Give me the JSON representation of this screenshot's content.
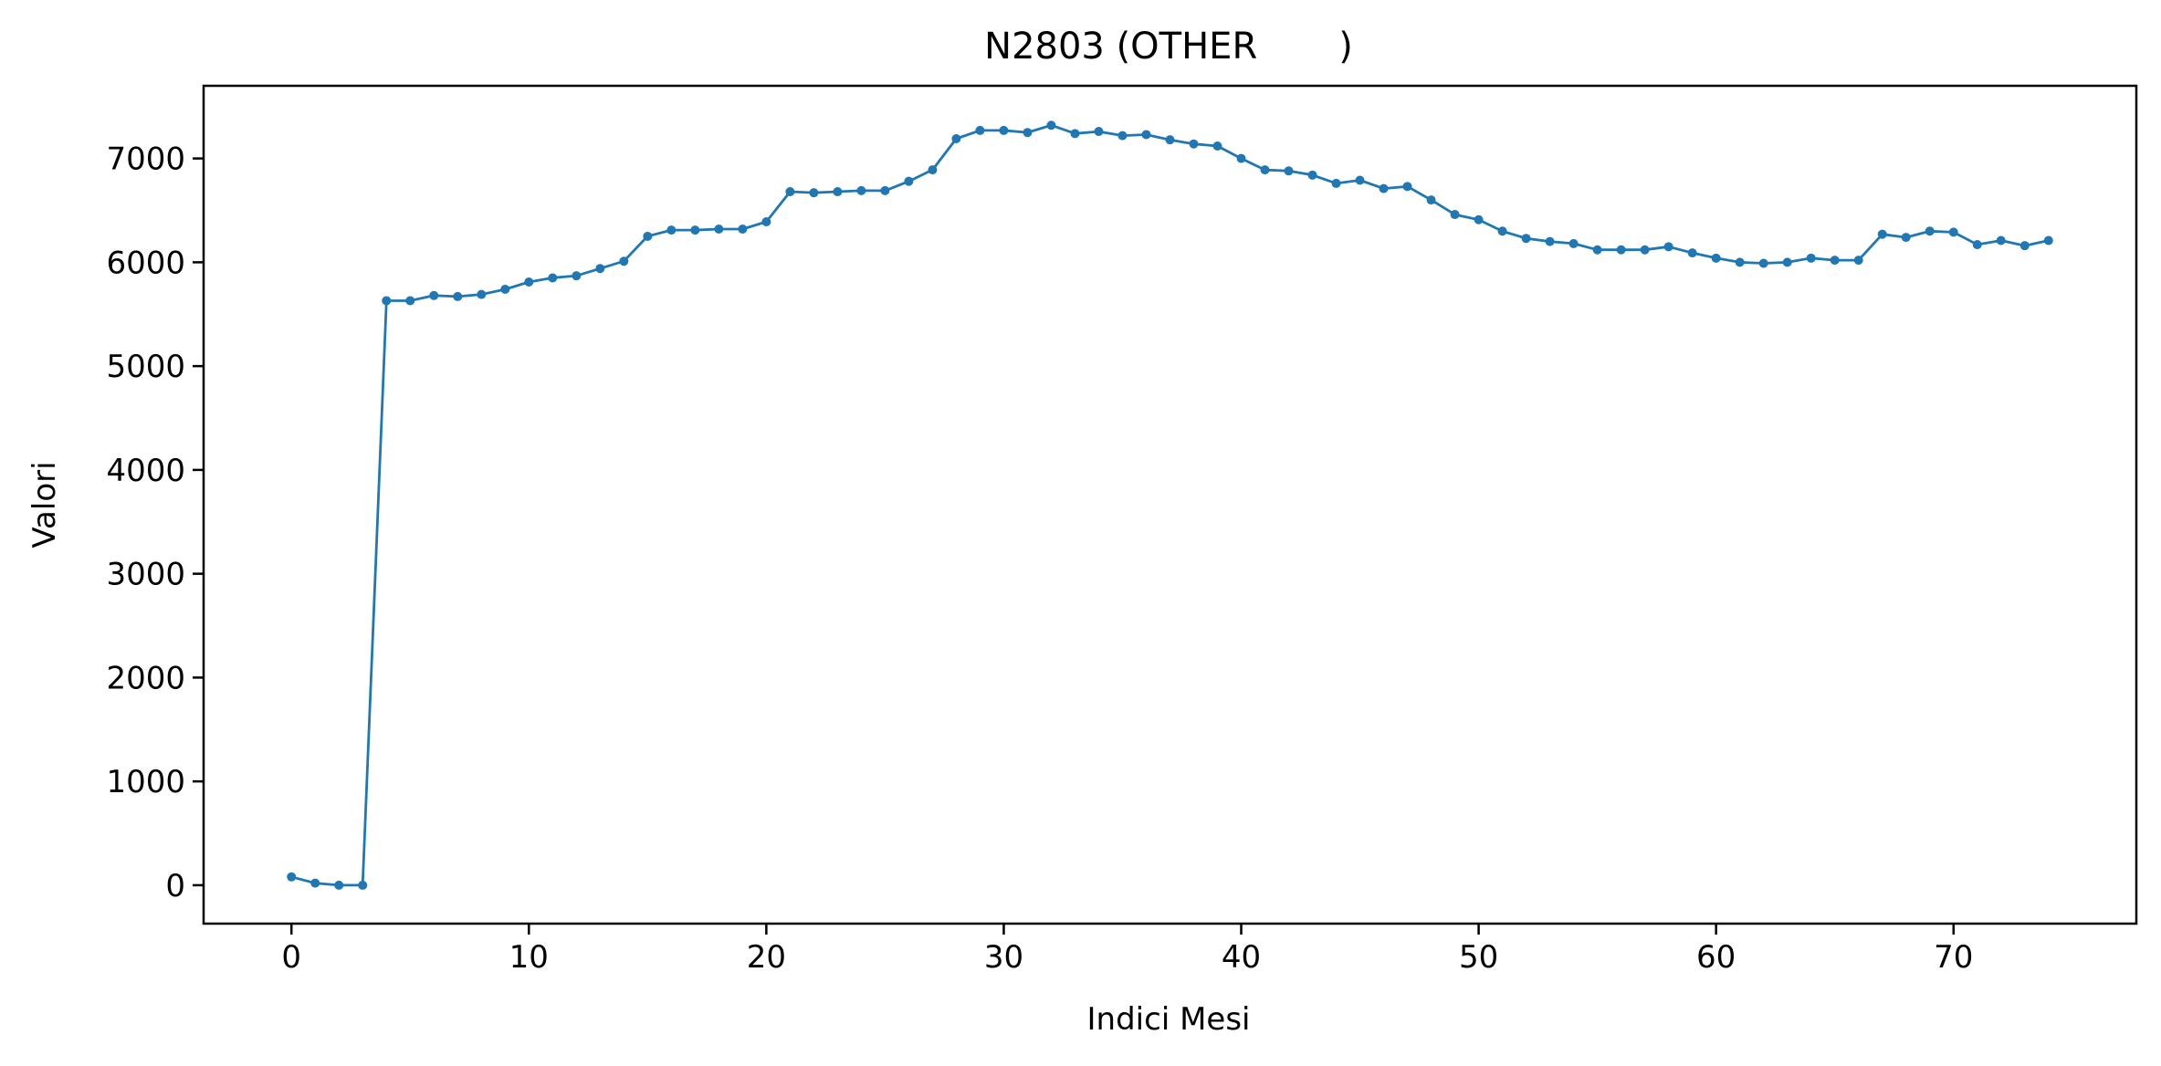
{
  "chart_data": {
    "type": "line",
    "title": "N2803 (OTHER       )",
    "xlabel": "Indici Mesi",
    "ylabel": "Valori",
    "xlim": [
      -3.7,
      77.7
    ],
    "ylim": [
      -370,
      7700
    ],
    "xticks": [
      0,
      10,
      20,
      30,
      40,
      50,
      60,
      70
    ],
    "yticks": [
      0,
      1000,
      2000,
      3000,
      4000,
      5000,
      6000,
      7000
    ],
    "grid": false,
    "legend": false,
    "series": [
      {
        "color": "#1f77b4",
        "marker": "circle",
        "x": [
          0,
          1,
          2,
          3,
          4,
          5,
          6,
          7,
          8,
          9,
          10,
          11,
          12,
          13,
          14,
          15,
          16,
          17,
          18,
          19,
          20,
          21,
          22,
          23,
          24,
          25,
          26,
          27,
          28,
          29,
          30,
          31,
          32,
          33,
          34,
          35,
          36,
          37,
          38,
          39,
          40,
          41,
          42,
          43,
          44,
          45,
          46,
          47,
          48,
          49,
          50,
          51,
          52,
          53,
          54,
          55,
          56,
          57,
          58,
          59,
          60,
          61,
          62,
          63,
          64,
          65,
          66,
          67,
          68,
          69,
          70,
          71,
          72,
          73,
          74
        ],
        "y": [
          80,
          20,
          0,
          0,
          5630,
          5630,
          5680,
          5670,
          5690,
          5740,
          5810,
          5850,
          5870,
          5940,
          6010,
          6250,
          6310,
          6310,
          6320,
          6320,
          6390,
          6680,
          6670,
          6680,
          6690,
          6690,
          6780,
          6890,
          7190,
          7270,
          7270,
          7250,
          7320,
          7240,
          7260,
          7220,
          7230,
          7180,
          7140,
          7120,
          7000,
          6890,
          6880,
          6840,
          6760,
          6790,
          6710,
          6730,
          6600,
          6460,
          6410,
          6300,
          6230,
          6200,
          6180,
          6120,
          6120,
          6120,
          6150,
          6090,
          6040,
          6000,
          5990,
          6000,
          6040,
          6020,
          6020,
          6270,
          6240,
          6300,
          6290,
          6170,
          6210,
          6160,
          6210
        ]
      }
    ]
  }
}
